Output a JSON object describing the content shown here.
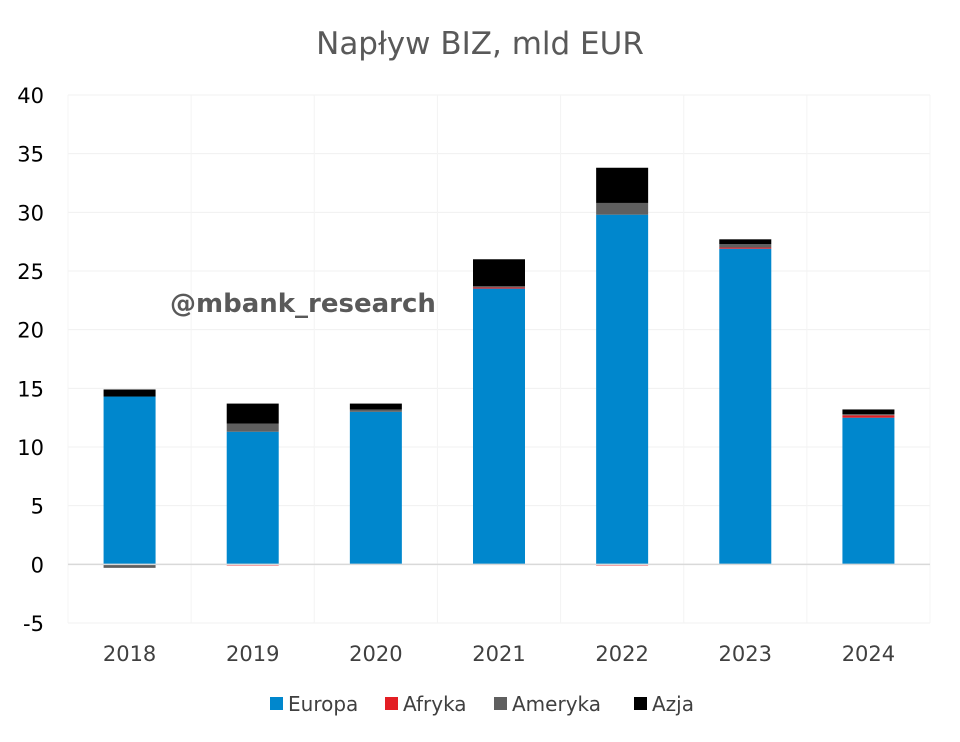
{
  "chart_data": {
    "type": "bar",
    "stacked": true,
    "title": "Napływ BIZ, mld EUR",
    "watermark": "@mbank_research",
    "categories": [
      "2018",
      "2019",
      "2020",
      "2021",
      "2022",
      "2023",
      "2024"
    ],
    "series": [
      {
        "name": "Europa",
        "color": "#0087cd",
        "values": [
          14.3,
          11.3,
          13.0,
          23.5,
          29.8,
          26.9,
          12.5
        ]
      },
      {
        "name": "Afryka",
        "color": "#e31e24",
        "values": [
          0.0,
          -0.1,
          0.0,
          0.1,
          -0.1,
          0.1,
          0.2
        ]
      },
      {
        "name": "Ameryka",
        "color": "#5f5f5f",
        "values": [
          -0.3,
          0.7,
          0.2,
          0.1,
          1.0,
          0.3,
          0.1
        ]
      },
      {
        "name": "Azja",
        "color": "#000000",
        "values": [
          0.6,
          1.7,
          0.5,
          2.3,
          3.0,
          0.4,
          0.4
        ]
      }
    ],
    "ylim": [
      -5,
      40
    ],
    "yticks": [
      -5,
      0,
      5,
      10,
      15,
      20,
      25,
      30,
      35,
      40
    ],
    "grid": true,
    "legend_position": "bottom"
  }
}
